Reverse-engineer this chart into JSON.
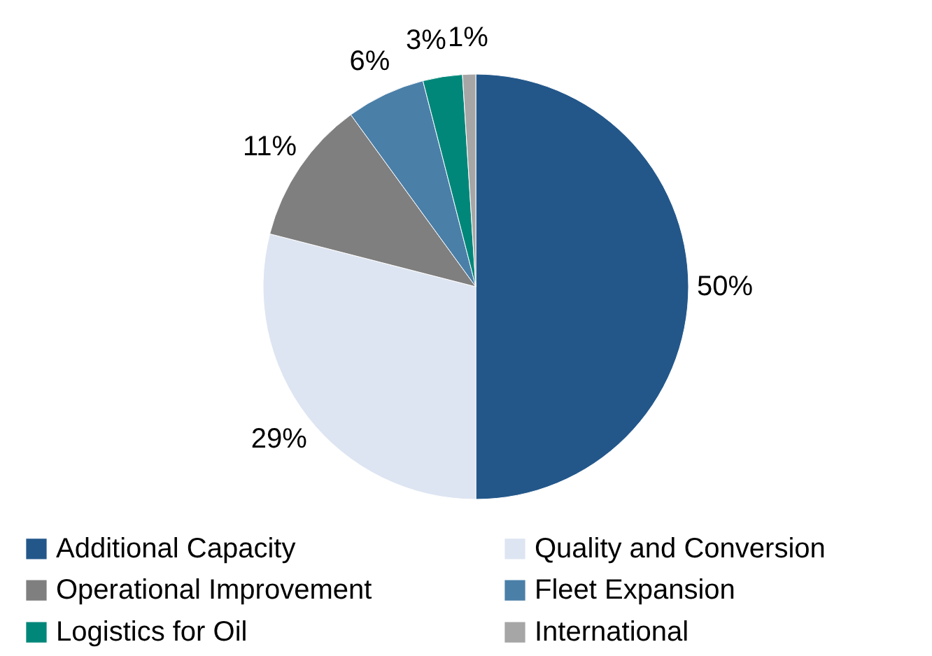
{
  "chart_data": {
    "type": "pie",
    "categories": [
      "Additional Capacity",
      "Quality and Conversion",
      "Operational Improvement",
      "Fleet Expansion",
      "Logistics for Oil",
      "International"
    ],
    "values": [
      50,
      29,
      11,
      6,
      3,
      1
    ],
    "value_labels": [
      "50%",
      "29%",
      "11%",
      "6%",
      "3%",
      "1%"
    ],
    "colors": [
      "#23578a",
      "#dde5f2",
      "#7f7f7f",
      "#4a7fa8",
      "#00877a",
      "#a6a6a6"
    ],
    "legend": "bottom"
  }
}
